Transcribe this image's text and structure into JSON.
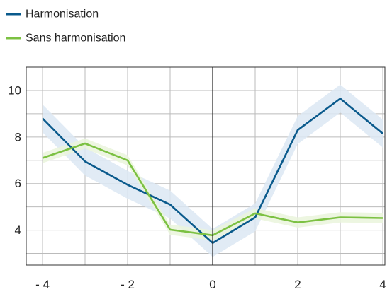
{
  "chart_data": {
    "type": "line",
    "title": "",
    "xlabel": "",
    "ylabel": "",
    "xlim": [
      -4,
      4
    ],
    "ylim": [
      2.5,
      11
    ],
    "grid": true,
    "legend_position": "top-left",
    "x": [
      -4,
      -3,
      -2,
      -1,
      0,
      1,
      2,
      3,
      4
    ],
    "x_ticks": [
      -4,
      -2,
      0,
      2,
      4
    ],
    "x_tick_labels": [
      "- 4",
      "- 2",
      "0",
      "2",
      "4"
    ],
    "y_ticks": [
      4,
      6,
      8,
      10
    ],
    "y_tick_labels": [
      "4",
      "6",
      "8",
      "10"
    ],
    "series": [
      {
        "name": "Harmonisation",
        "color": "#0a5a8c",
        "band_color": "#dce8f3",
        "values": [
          8.8,
          6.95,
          5.95,
          5.1,
          3.45,
          4.55,
          8.3,
          9.65,
          8.15
        ],
        "band_half_width": 0.6
      },
      {
        "name": "Sans harmonisation",
        "color": "#7cc142",
        "band_color": "#eaf5dc",
        "values": [
          7.1,
          7.72,
          7.0,
          4.02,
          3.78,
          4.72,
          4.33,
          4.55,
          4.52
        ],
        "band_half_width": 0.22
      }
    ]
  }
}
